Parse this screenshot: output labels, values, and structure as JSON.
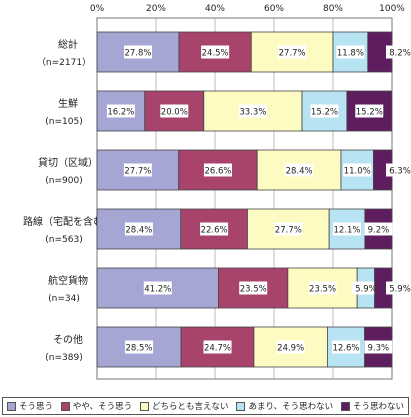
{
  "chart_data": {
    "type": "bar",
    "orientation": "horizontal",
    "stacked": true,
    "percent": true,
    "x_ticks": [
      "0%",
      "20%",
      "40%",
      "60%",
      "80%",
      "100%"
    ],
    "xlim": [
      0,
      100
    ],
    "categories": [
      {
        "name": "総計",
        "n": "（n=2171）"
      },
      {
        "name": "生鮮",
        "n": "(n=105)"
      },
      {
        "name": "貸切（区域）",
        "n": "(n=900)"
      },
      {
        "name": "路線（宅配を含む）",
        "n": "(n=563)"
      },
      {
        "name": "航空貨物",
        "n": "(n=34)"
      },
      {
        "name": "その他",
        "n": "(n=389)"
      }
    ],
    "series": [
      {
        "name": "そう思う",
        "color": "#a6a6d4",
        "values": [
          27.8,
          16.2,
          27.7,
          28.4,
          41.2,
          28.5
        ],
        "labels": [
          "27.8%",
          "16.2%",
          "27.7%",
          "28.4%",
          "41.2%",
          "28.5%"
        ]
      },
      {
        "name": "やや、そう思う",
        "color": "#a8436c",
        "values": [
          24.5,
          20.0,
          26.6,
          22.6,
          23.5,
          24.7
        ],
        "labels": [
          "24.5%",
          "20.0%",
          "26.6%",
          "22.6%",
          "23.5%",
          "24.7%"
        ]
      },
      {
        "name": "どちらとも言えない",
        "color": "#fdfbc2",
        "values": [
          27.7,
          33.3,
          28.4,
          27.7,
          23.5,
          24.9
        ],
        "labels": [
          "27.7%",
          "33.3%",
          "28.4%",
          "27.7%",
          "23.5%",
          "24.9%"
        ]
      },
      {
        "name": "あまり、そう思わない",
        "color": "#b8e3f3",
        "values": [
          11.8,
          15.2,
          11.0,
          12.1,
          5.9,
          12.6
        ],
        "labels": [
          "11.8%",
          "15.2%",
          "11.0%",
          "12.1%",
          "5.9%",
          "12.6%"
        ]
      },
      {
        "name": "そう思わない",
        "color": "#5e1d5e",
        "values": [
          8.2,
          15.2,
          6.3,
          9.2,
          5.9,
          9.3
        ],
        "labels": [
          "8.2%",
          "15.2%",
          "6.3%",
          "9.2%",
          "5.9%",
          "9.3%"
        ]
      }
    ]
  }
}
